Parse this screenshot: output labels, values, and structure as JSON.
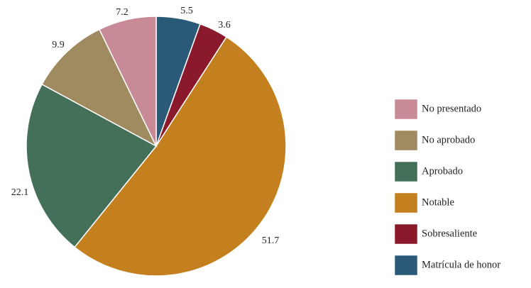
{
  "chart_data": {
    "type": "pie",
    "categories": [
      "No presentado",
      "No aprobado",
      "Aprobado",
      "Notable",
      "Sobresaliente",
      "Matrícula de honor"
    ],
    "values": [
      7.2,
      9.9,
      22.1,
      51.7,
      3.6,
      5.5
    ],
    "value_labels": [
      "7.2",
      "9.9",
      "22.1",
      "51.7",
      "3.6",
      "5.5"
    ],
    "colors": [
      "#c98a98",
      "#a08a5f",
      "#44705a",
      "#c47f1e",
      "#8a1a2b",
      "#2a5a78"
    ],
    "slice_order_clockwise_from_top": [
      "Matrícula de honor",
      "Sobresaliente",
      "Notable",
      "Aprobado",
      "No aprobado",
      "No presentado"
    ],
    "title": "",
    "legend_position": "right"
  }
}
